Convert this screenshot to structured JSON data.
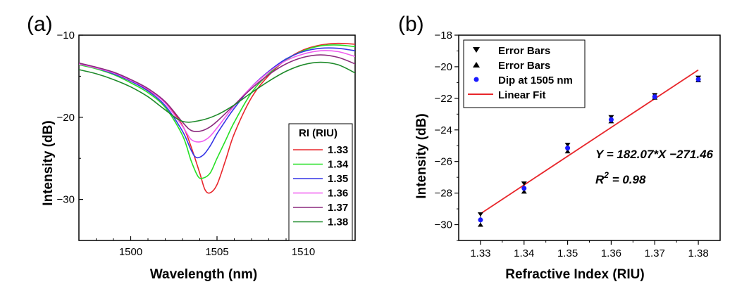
{
  "chart_data": [
    {
      "panel": "(a)",
      "type": "line",
      "xlabel": "Wavelength (nm)",
      "ylabel": "Intensity (dB)",
      "xlim": [
        1497,
        1513
      ],
      "ylim": [
        -35,
        -10
      ],
      "xticks": [
        "1500",
        "1505",
        "1510"
      ],
      "yticks": [
        "-10",
        "-20",
        "-30"
      ],
      "legend_title": "RI (RIU)",
      "legend_position": "right",
      "series": [
        {
          "name": "1.33",
          "color": "#e8262b",
          "x": [
            1497,
            1498,
            1499,
            1500,
            1501,
            1502,
            1503,
            1503.5,
            1504,
            1504.3,
            1504.6,
            1505,
            1505.5,
            1506,
            1507,
            1508,
            1509,
            1510,
            1511,
            1512,
            1513
          ],
          "y": [
            -13.6,
            -14.0,
            -14.7,
            -15.6,
            -16.7,
            -18.2,
            -21.0,
            -23.6,
            -26.8,
            -28.8,
            -29.2,
            -28.2,
            -25.2,
            -22.0,
            -17.6,
            -14.9,
            -13.0,
            -11.8,
            -11.2,
            -11.0,
            -11.1
          ]
        },
        {
          "name": "1.34",
          "color": "#26e026",
          "x": [
            1497,
            1498,
            1499,
            1500,
            1501,
            1502,
            1503,
            1503.5,
            1503.9,
            1504.2,
            1504.6,
            1505,
            1505.5,
            1506,
            1507,
            1508,
            1509,
            1510,
            1511,
            1512,
            1513
          ],
          "y": [
            -13.6,
            -14.1,
            -14.8,
            -15.8,
            -17.0,
            -18.8,
            -22.2,
            -25.3,
            -27.2,
            -27.4,
            -26.8,
            -25.0,
            -22.8,
            -20.6,
            -17.0,
            -14.7,
            -13.0,
            -11.9,
            -11.3,
            -11.2,
            -11.4
          ]
        },
        {
          "name": "1.35",
          "color": "#3535e6",
          "x": [
            1497,
            1498,
            1499,
            1500,
            1501,
            1502,
            1503,
            1503.5,
            1503.8,
            1504.2,
            1504.6,
            1505,
            1505.5,
            1506,
            1507,
            1508,
            1509,
            1510,
            1511,
            1512,
            1513
          ],
          "y": [
            -13.5,
            -14.0,
            -14.7,
            -15.6,
            -16.8,
            -18.6,
            -21.7,
            -24.0,
            -24.9,
            -24.6,
            -23.5,
            -22.0,
            -20.4,
            -18.9,
            -16.3,
            -14.4,
            -12.9,
            -12.0,
            -11.6,
            -11.6,
            -11.9
          ]
        },
        {
          "name": "1.36",
          "color": "#f05cf0",
          "x": [
            1497,
            1498,
            1499,
            1500,
            1501,
            1502,
            1503,
            1503.5,
            1504,
            1504.5,
            1505,
            1506,
            1507,
            1508,
            1509,
            1510,
            1511,
            1512,
            1513
          ],
          "y": [
            -13.5,
            -14.0,
            -14.6,
            -15.5,
            -16.6,
            -18.3,
            -21.1,
            -22.7,
            -23.0,
            -22.5,
            -21.3,
            -18.6,
            -16.3,
            -14.5,
            -13.1,
            -12.3,
            -11.9,
            -12.0,
            -12.6
          ]
        },
        {
          "name": "1.37",
          "color": "#8b2a7d",
          "x": [
            1497,
            1498,
            1499,
            1500,
            1501,
            1502,
            1503,
            1503.5,
            1504,
            1504.5,
            1505,
            1506,
            1507,
            1508,
            1509,
            1510,
            1511,
            1512,
            1513
          ],
          "y": [
            -13.4,
            -13.9,
            -14.5,
            -15.4,
            -16.5,
            -18.1,
            -20.6,
            -21.6,
            -21.7,
            -21.3,
            -20.5,
            -18.5,
            -16.5,
            -14.8,
            -13.5,
            -12.7,
            -12.4,
            -12.7,
            -13.5
          ]
        },
        {
          "name": "1.38",
          "color": "#1e8a2a",
          "x": [
            1497,
            1498,
            1499,
            1500,
            1501,
            1502,
            1503,
            1504,
            1505,
            1506,
            1507,
            1508,
            1509,
            1510,
            1511,
            1512,
            1513
          ],
          "y": [
            -14.2,
            -14.7,
            -15.4,
            -16.3,
            -17.5,
            -19.1,
            -20.5,
            -20.4,
            -19.7,
            -18.5,
            -17.0,
            -15.6,
            -14.4,
            -13.6,
            -13.3,
            -13.6,
            -14.6
          ]
        }
      ]
    },
    {
      "panel": "(b)",
      "type": "scatter",
      "xlabel": "Refractive Index (RIU)",
      "ylabel": "Intensity (dB)",
      "xlim": [
        1.325,
        1.385
      ],
      "ylim": [
        -31,
        -18
      ],
      "xticks": [
        "1.33",
        "1.34",
        "1.35",
        "1.36",
        "1.37",
        "1.38"
      ],
      "yticks": [
        "-18",
        "-20",
        "-22",
        "-24",
        "-26",
        "-28",
        "-30"
      ],
      "legend_position": "top-left",
      "legend": [
        "Error Bars",
        "Error Bars",
        "Dip at 1505 nm",
        "Linear Fit"
      ],
      "points": {
        "name": "Dip at 1505 nm",
        "color": "#1a1aff",
        "x": [
          1.33,
          1.34,
          1.35,
          1.36,
          1.37,
          1.38
        ],
        "y": [
          -29.7,
          -27.7,
          -25.15,
          -23.35,
          -21.9,
          -20.8
        ],
        "err_lower": [
          -30.0,
          -27.9,
          -25.35,
          -23.45,
          -21.95,
          -20.85
        ],
        "err_upper": [
          -29.35,
          -27.4,
          -24.95,
          -23.2,
          -21.8,
          -20.7
        ]
      },
      "fit": {
        "name": "Linear Fit",
        "color": "#e8262b",
        "slope": 182.07,
        "intercept": -271.46,
        "x_range": [
          1.33,
          1.38
        ]
      },
      "annotations": [
        "Y = 182.07*X −271.46",
        "R",
        "2",
        " = 0.98"
      ]
    }
  ],
  "labels": {
    "panel_a": "(a)",
    "panel_b": "(b)"
  }
}
